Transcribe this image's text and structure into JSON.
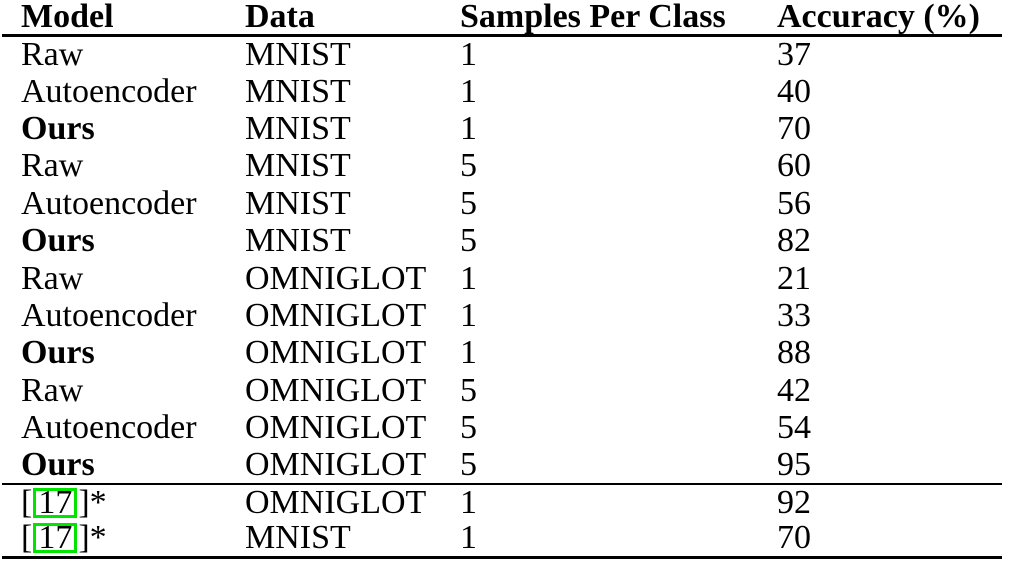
{
  "table": {
    "columns": [
      {
        "label": "Model"
      },
      {
        "label": "Data"
      },
      {
        "label": "Samples Per Class"
      },
      {
        "label": "Accuracy (%)"
      }
    ],
    "rows": [
      {
        "model": "Raw",
        "data": "MNIST",
        "samples": "1",
        "accuracy": "37",
        "emphasis": "normal"
      },
      {
        "model": "Autoencoder",
        "data": "MNIST",
        "samples": "1",
        "accuracy": "40",
        "emphasis": "normal"
      },
      {
        "model": "Ours",
        "data": "MNIST",
        "samples": "1",
        "accuracy": "70",
        "emphasis": "bold"
      },
      {
        "model": "Raw",
        "data": "MNIST",
        "samples": "5",
        "accuracy": "60",
        "emphasis": "normal"
      },
      {
        "model": "Autoencoder",
        "data": "MNIST",
        "samples": "5",
        "accuracy": "56",
        "emphasis": "normal"
      },
      {
        "model": "Ours",
        "data": "MNIST",
        "samples": "5",
        "accuracy": "82",
        "emphasis": "bold"
      },
      {
        "model": "Raw",
        "data": "OMNIGLOT",
        "samples": "1",
        "accuracy": "21",
        "emphasis": "normal"
      },
      {
        "model": "Autoencoder",
        "data": "OMNIGLOT",
        "samples": "1",
        "accuracy": "33",
        "emphasis": "normal"
      },
      {
        "model": "Ours",
        "data": "OMNIGLOT",
        "samples": "1",
        "accuracy": "88",
        "emphasis": "bold"
      },
      {
        "model": "Raw",
        "data": "OMNIGLOT",
        "samples": "5",
        "accuracy": "42",
        "emphasis": "normal"
      },
      {
        "model": "Autoencoder",
        "data": "OMNIGLOT",
        "samples": "5",
        "accuracy": "54",
        "emphasis": "normal"
      },
      {
        "model": "Ours",
        "data": "OMNIGLOT",
        "samples": "5",
        "accuracy": "95",
        "emphasis": "bold"
      }
    ],
    "footer_rows": [
      {
        "model_prefix": "[",
        "citation": "17",
        "model_suffix": "]*",
        "data": "OMNIGLOT",
        "samples": "1",
        "accuracy": "92"
      },
      {
        "model_prefix": "[",
        "citation": "17",
        "model_suffix": "]*",
        "data": "MNIST",
        "samples": "1",
        "accuracy": "70"
      }
    ]
  },
  "colors": {
    "citation_box_border": "#00e400",
    "text": "#000000",
    "rule": "#000000",
    "background": "#ffffff"
  }
}
